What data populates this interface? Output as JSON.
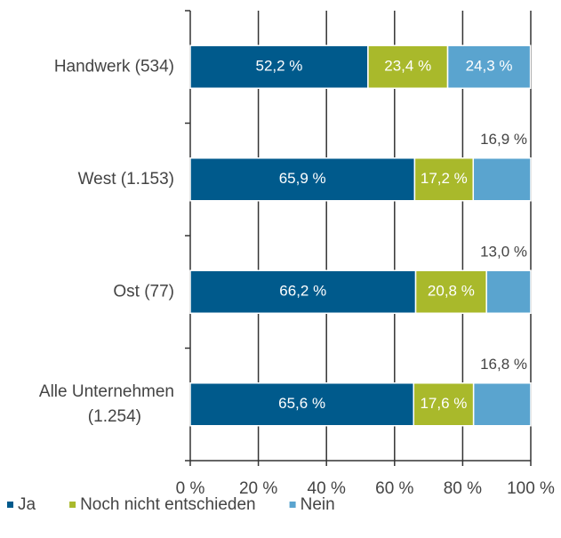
{
  "chart_data": {
    "type": "stacked_barh",
    "categories": [
      "Handwerk (534)",
      "West (1.153)",
      "Ost (77)",
      "Alle Unternehmen (1.254)"
    ],
    "series": [
      {
        "name": "Ja",
        "color": "#005a8c",
        "values": [
          52.2,
          65.9,
          66.2,
          65.6
        ],
        "value_labels": [
          "52,2 %",
          "65,9 %",
          "66,2 %",
          "65,6 %"
        ]
      },
      {
        "name": "Noch nicht entschieden",
        "color": "#a9b92b",
        "values": [
          23.4,
          17.2,
          20.8,
          17.6
        ],
        "value_labels": [
          "23,4 %",
          "17,2 %",
          "20,8 %",
          "17,6 %"
        ]
      },
      {
        "name": "Nein",
        "color": "#5aa4cf",
        "values": [
          24.3,
          16.9,
          13.0,
          16.8
        ],
        "value_labels": [
          "24,3 %",
          "16,9 %",
          "13,0 %",
          "16,8 %"
        ]
      }
    ],
    "xlim": [
      0,
      100
    ],
    "xticks": [
      {
        "value": 0,
        "label": "0 %"
      },
      {
        "value": 20,
        "label": "20 %"
      },
      {
        "value": 40,
        "label": "40 %"
      },
      {
        "value": 60,
        "label": "60 %"
      },
      {
        "value": 80,
        "label": "80 %"
      },
      {
        "value": 100,
        "label": "100 %"
      }
    ],
    "grid": true,
    "legend": "bottom"
  }
}
